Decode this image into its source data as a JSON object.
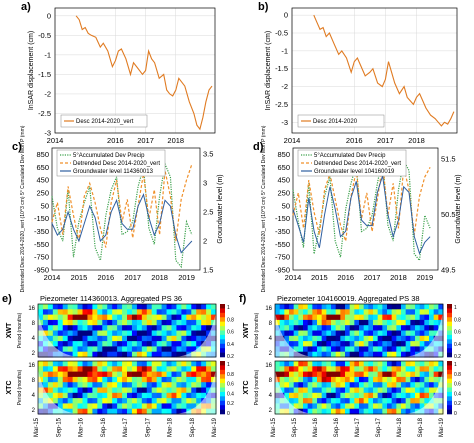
{
  "chart_data": [
    {
      "panel": "a)",
      "type": "line",
      "ylabel": "InSAR displacement (cm)",
      "ylim": [
        -3.0,
        0.2
      ],
      "yticks": [
        "0",
        "-0.5",
        "-1",
        "-1.5",
        "-2",
        "-2.5",
        "-3"
      ],
      "xticks": [
        "2014",
        "2016",
        "2017",
        "2018"
      ],
      "xlim": [
        2014.0,
        2019.3
      ],
      "series": [
        {
          "name": "Desc 2014-2020_vert",
          "color": "#e07b22",
          "x": [
            2014.7,
            2014.8,
            2014.9,
            2015.0,
            2015.1,
            2015.2,
            2015.35,
            2015.5,
            2015.6,
            2015.75,
            2015.9,
            2016.0,
            2016.1,
            2016.2,
            2016.35,
            2016.5,
            2016.6,
            2016.75,
            2016.9,
            2017.0,
            2017.1,
            2017.2,
            2017.3,
            2017.45,
            2017.6,
            2017.7,
            2017.8,
            2017.9,
            2018.0,
            2018.1,
            2018.2,
            2018.3,
            2018.45,
            2018.6,
            2018.7,
            2018.8,
            2018.9,
            2019.0,
            2019.1,
            2019.2
          ],
          "y": [
            0.0,
            -0.1,
            -0.35,
            -0.3,
            -0.45,
            -0.5,
            -0.55,
            -0.8,
            -0.7,
            -0.9,
            -1.3,
            -1.15,
            -0.9,
            -0.85,
            -1.1,
            -1.5,
            -1.2,
            -1.35,
            -1.5,
            -1.4,
            -0.9,
            -1.1,
            -1.2,
            -1.6,
            -1.5,
            -1.9,
            -2.0,
            -2.05,
            -1.9,
            -1.6,
            -1.7,
            -1.8,
            -2.2,
            -2.5,
            -2.8,
            -2.9,
            -2.6,
            -2.2,
            -1.9,
            -1.8
          ]
        }
      ]
    },
    {
      "panel": "b)",
      "type": "line",
      "ylabel": "InSAR displacement (cm)",
      "ylim": [
        -3.3,
        0.2
      ],
      "yticks": [
        "0",
        "-0.5",
        "-1",
        "-1.5",
        "-2",
        "-2.5",
        "-3"
      ],
      "xticks": [
        "2014",
        "2016",
        "2017",
        "2018"
      ],
      "xlim": [
        2014.0,
        2019.3
      ],
      "series": [
        {
          "name": "Desc 2014-2020",
          "color": "#e07b22",
          "x": [
            2014.7,
            2014.8,
            2014.9,
            2015.0,
            2015.1,
            2015.2,
            2015.35,
            2015.5,
            2015.6,
            2015.75,
            2015.9,
            2016.0,
            2016.1,
            2016.2,
            2016.35,
            2016.5,
            2016.6,
            2016.75,
            2016.9,
            2017.0,
            2017.1,
            2017.2,
            2017.3,
            2017.45,
            2017.6,
            2017.7,
            2017.8,
            2017.9,
            2018.0,
            2018.1,
            2018.2,
            2018.3,
            2018.45,
            2018.6,
            2018.7,
            2018.8,
            2018.9,
            2019.0,
            2019.1,
            2019.2
          ],
          "y": [
            0.0,
            -0.2,
            -0.4,
            -0.35,
            -0.6,
            -0.5,
            -0.8,
            -1.1,
            -1.0,
            -1.2,
            -1.6,
            -1.3,
            -1.2,
            -1.4,
            -1.7,
            -1.6,
            -1.5,
            -1.9,
            -2.0,
            -1.8,
            -1.3,
            -1.6,
            -1.9,
            -2.2,
            -2.0,
            -2.3,
            -2.4,
            -2.5,
            -2.3,
            -2.2,
            -2.4,
            -2.6,
            -2.8,
            -2.9,
            -3.0,
            -3.1,
            -3.0,
            -3.05,
            -2.9,
            -2.7
          ]
        }
      ]
    },
    {
      "panel": "c)",
      "type": "line",
      "ylabel_left": "Detrended Desc 2014-2020_vert (10^3 cm) 5° Cumulated Dev Mon P (mm)",
      "ylabel_right": "Groundwater level (m)",
      "ylim_left": [
        -950,
        950
      ],
      "ylim_right": [
        1.5,
        3.6
      ],
      "yticks_left": [
        "850",
        "650",
        "450",
        "250",
        "50",
        "-150",
        "-350",
        "-550",
        "-750",
        "-950"
      ],
      "yticks_right": [
        "3.5",
        "3",
        "2.5",
        "2",
        "1.5"
      ],
      "xticks": [
        "2014",
        "2015",
        "2016",
        "2017",
        "2018",
        "2019"
      ],
      "xlim": [
        2014.0,
        2019.5
      ],
      "series": [
        {
          "name": "5°Accumulated Dev Precip",
          "color": "#3aa04a",
          "style": "dotted",
          "x": [
            2014.0,
            2014.2,
            2014.4,
            2014.6,
            2014.8,
            2015.0,
            2015.2,
            2015.4,
            2015.6,
            2015.8,
            2016.0,
            2016.2,
            2016.4,
            2016.6,
            2016.8,
            2017.0,
            2017.2,
            2017.4,
            2017.6,
            2017.8,
            2018.0,
            2018.2,
            2018.4,
            2018.6,
            2018.8,
            2019.0,
            2019.2
          ],
          "y": [
            200,
            -300,
            -500,
            300,
            -750,
            -200,
            100,
            350,
            -600,
            -800,
            -100,
            300,
            500,
            -400,
            -350,
            -200,
            350,
            650,
            -300,
            -550,
            200,
            700,
            500,
            -800,
            -900,
            -200,
            -400
          ]
        },
        {
          "name": "Detrended Desc 2014-2020_vert",
          "color": "#f0902a",
          "style": "dashed",
          "x": [
            2014.0,
            2014.2,
            2014.4,
            2014.6,
            2014.8,
            2015.0,
            2015.2,
            2015.4,
            2015.6,
            2015.8,
            2016.0,
            2016.2,
            2016.4,
            2016.6,
            2016.8,
            2017.0,
            2017.2,
            2017.4,
            2017.6,
            2017.8,
            2018.0,
            2018.2,
            2018.4,
            2018.6,
            2018.8,
            2019.0,
            2019.2
          ],
          "y": [
            -200,
            100,
            -400,
            350,
            -100,
            -500,
            200,
            400,
            100,
            -300,
            -600,
            100,
            450,
            -200,
            150,
            -450,
            50,
            550,
            -150,
            300,
            -400,
            600,
            200,
            -500,
            150,
            450,
            700
          ]
        },
        {
          "name": "Groundwater level  114360013",
          "color": "#2f5fa0",
          "style": "solid",
          "axis": "right",
          "x": [
            2014.0,
            2014.2,
            2014.4,
            2014.6,
            2014.8,
            2015.0,
            2015.2,
            2015.4,
            2015.6,
            2015.8,
            2016.0,
            2016.2,
            2016.4,
            2016.6,
            2016.8,
            2017.0,
            2017.2,
            2017.4,
            2017.6,
            2017.8,
            2018.0,
            2018.2,
            2018.4,
            2018.6,
            2018.8,
            2019.0,
            2019.2
          ],
          "y": [
            2.3,
            2.1,
            2.2,
            2.5,
            2.2,
            2.0,
            2.3,
            2.6,
            2.4,
            2.0,
            2.1,
            2.5,
            2.7,
            2.3,
            2.2,
            2.2,
            2.6,
            2.8,
            2.4,
            2.1,
            2.3,
            2.7,
            2.6,
            2.1,
            1.8,
            1.9,
            2.0
          ]
        }
      ]
    },
    {
      "panel": "d)",
      "type": "line",
      "ylabel_left": "Detrended Desc 2014-2020_vert (10^3 cm) 5° Cumulated Dev Mon P (mm)",
      "ylabel_right": "Groundwater level (m)",
      "ylim_left": [
        -950,
        950
      ],
      "ylim_right": [
        49.5,
        51.7
      ],
      "yticks_left": [
        "850",
        "650",
        "450",
        "250",
        "50",
        "-150",
        "-350",
        "-550",
        "-750",
        "-950"
      ],
      "yticks_right": [
        "51.5",
        "50.5",
        "49.5"
      ],
      "xticks": [
        "2014",
        "2015",
        "2016",
        "2017",
        "2018",
        "2019"
      ],
      "xlim": [
        2014.0,
        2019.5
      ],
      "series": [
        {
          "name": "5°Accumulated Dev Precip",
          "color": "#3aa04a",
          "style": "dotted",
          "x": [
            2014.0,
            2014.2,
            2014.4,
            2014.6,
            2014.8,
            2015.0,
            2015.2,
            2015.4,
            2015.6,
            2015.8,
            2016.0,
            2016.2,
            2016.4,
            2016.6,
            2016.8,
            2017.0,
            2017.2,
            2017.4,
            2017.6,
            2017.8,
            2018.0,
            2018.2,
            2018.4,
            2018.6,
            2018.8,
            2019.0,
            2019.2
          ],
          "y": [
            300,
            -200,
            -600,
            400,
            -700,
            -300,
            200,
            500,
            -500,
            -750,
            0,
            400,
            700,
            -350,
            -300,
            -100,
            400,
            800,
            -250,
            -500,
            300,
            750,
            600,
            -700,
            -800,
            -100,
            -300
          ]
        },
        {
          "name": "Detrended Desc 2014-2020_vert",
          "color": "#f0902a",
          "style": "dashed",
          "x": [
            2014.0,
            2014.2,
            2014.4,
            2014.6,
            2014.8,
            2015.0,
            2015.2,
            2015.4,
            2015.6,
            2015.8,
            2016.0,
            2016.2,
            2016.4,
            2016.6,
            2016.8,
            2017.0,
            2017.2,
            2017.4,
            2017.6,
            2017.8,
            2018.0,
            2018.2,
            2018.4,
            2018.6,
            2018.8,
            2019.0,
            2019.2
          ],
          "y": [
            -100,
            250,
            -300,
            450,
            -50,
            -400,
            300,
            550,
            150,
            -250,
            -500,
            200,
            600,
            -150,
            250,
            -350,
            150,
            700,
            -100,
            400,
            -300,
            650,
            300,
            -400,
            200,
            500,
            650
          ]
        },
        {
          "name": "Groundwater level  104160019",
          "color": "#2f5fa0",
          "style": "solid",
          "axis": "right",
          "x": [
            2014.0,
            2014.2,
            2014.4,
            2014.6,
            2014.8,
            2015.0,
            2015.2,
            2015.4,
            2015.6,
            2015.8,
            2016.0,
            2016.2,
            2016.4,
            2016.6,
            2016.8,
            2017.0,
            2017.2,
            2017.4,
            2017.6,
            2017.8,
            2018.0,
            2018.2,
            2018.4,
            2018.6,
            2018.8,
            2019.0,
            2019.2
          ],
          "y": [
            50.6,
            50.3,
            50.0,
            50.8,
            50.2,
            49.9,
            50.5,
            51.0,
            50.6,
            50.1,
            50.2,
            50.8,
            51.1,
            50.4,
            50.3,
            50.3,
            50.9,
            51.2,
            50.5,
            50.1,
            50.4,
            51.0,
            50.9,
            50.1,
            49.8,
            50.0,
            50.1
          ]
        }
      ]
    },
    {
      "panel": "e)",
      "type": "heatmap",
      "title": "Piezometer 114360013. Aggregated PS 36",
      "rows": [
        "XWT",
        "XTC"
      ],
      "ylabel": "Period (months)",
      "yticks": [
        "16",
        "8",
        "4",
        "2"
      ],
      "xticks": [
        "Mar-15",
        "Sep-15",
        "Mar-16",
        "Sep-16",
        "Mar-17",
        "Sep-17",
        "Mar-18",
        "Sep-18",
        "Mar-19"
      ],
      "colorbar_xwt": [
        "1",
        "0.8",
        "0.6",
        "0.4",
        "0.2"
      ],
      "colorbar_xtc": [
        "1",
        "0.8",
        "0.6",
        "0.4",
        "0.2",
        "0"
      ]
    },
    {
      "panel": "f)",
      "type": "heatmap",
      "title": "Piezometer 104160019. Aggregated PS 38",
      "rows": [
        "XWT",
        "XTC"
      ],
      "ylabel": "Period (months)",
      "yticks": [
        "16",
        "8",
        "4",
        "2"
      ],
      "xticks": [
        "Mar-15",
        "Sep-15",
        "Mar-16",
        "Sep-16",
        "Mar-17",
        "Sep-17",
        "Mar-18",
        "Sep-18",
        "Mar-19"
      ],
      "colorbar_xwt": [
        "1",
        "0.8",
        "0.6",
        "0.4",
        "0.2"
      ],
      "colorbar_xtc": [
        "1",
        "0.8",
        "0.6",
        "0.4",
        "0.2",
        "0"
      ]
    }
  ]
}
